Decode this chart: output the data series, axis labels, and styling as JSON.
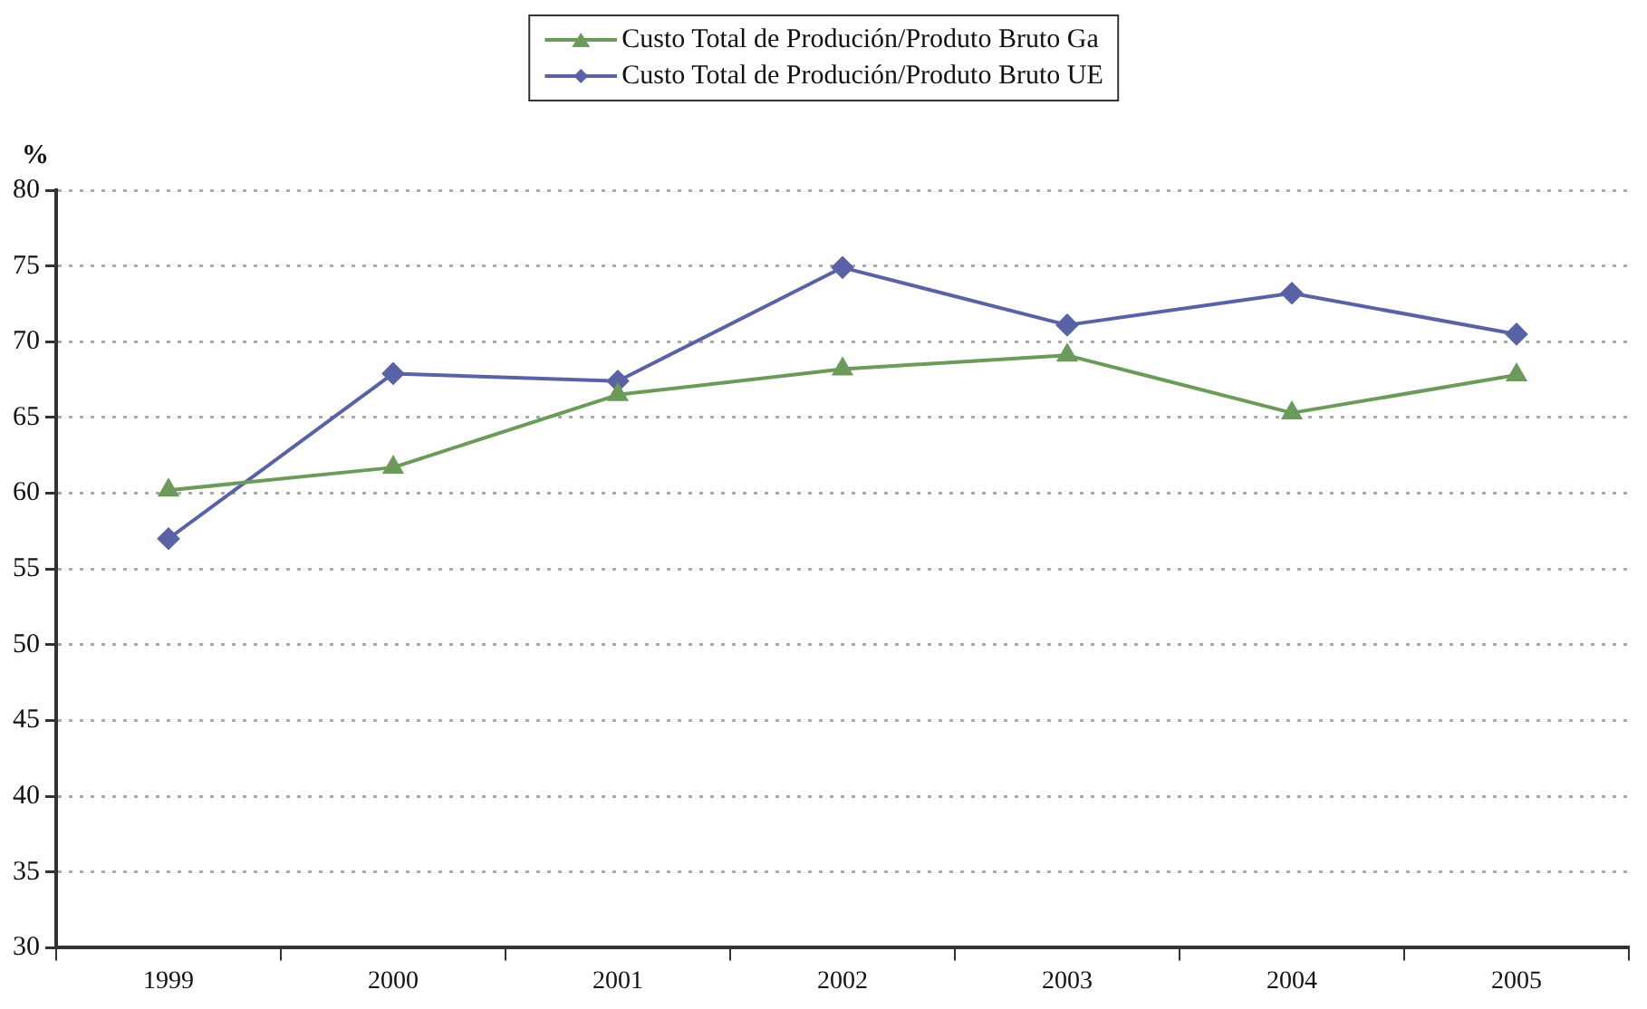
{
  "chart_data": {
    "type": "line",
    "ylabel": "%",
    "categories": [
      "1999",
      "2000",
      "2001",
      "2002",
      "2003",
      "2004",
      "2005"
    ],
    "series": [
      {
        "name": "Custo Total de Produción/Produto Bruto Ga",
        "color": "#6b9a5b",
        "marker": "triangle",
        "values": [
          60.2,
          61.7,
          66.5,
          68.2,
          69.1,
          65.3,
          67.8
        ]
      },
      {
        "name": "Custo Total de Produción/Produto Bruto UE",
        "color": "#5a62a6",
        "marker": "diamond",
        "values": [
          57.0,
          67.9,
          67.4,
          74.9,
          71.1,
          73.2,
          70.5
        ]
      }
    ],
    "ylim": [
      30,
      80
    ],
    "yticks": [
      30,
      35,
      40,
      45,
      50,
      55,
      60,
      65,
      70,
      75,
      80
    ],
    "grid": "y",
    "legend": "top",
    "line_style": "solid"
  }
}
